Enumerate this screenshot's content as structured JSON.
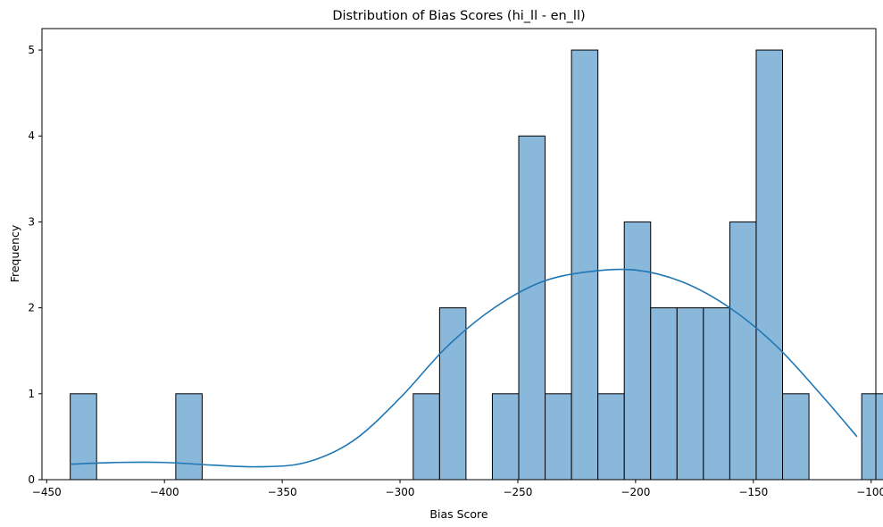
{
  "chart_data": {
    "type": "bar",
    "subtype": "histogram",
    "title": "Distribution of Bias Scores (hi_ll - en_ll)",
    "xlabel": "Bias Score",
    "ylabel": "Frequency",
    "xlim": [
      -452,
      -98
    ],
    "ylim": [
      0,
      5.25
    ],
    "xticks": [
      -450,
      -400,
      -350,
      -300,
      -250,
      -200,
      -150,
      -100
    ],
    "yticks": [
      0,
      1,
      2,
      3,
      4,
      5
    ],
    "bin_start": -440.0,
    "bin_width": 11.2,
    "counts": [
      1,
      0,
      0,
      0,
      1,
      0,
      0,
      0,
      0,
      0,
      0,
      0,
      0,
      1,
      2,
      0,
      1,
      4,
      1,
      5,
      1,
      3,
      2,
      2,
      2,
      3,
      5,
      1,
      0,
      0,
      1
    ],
    "kde_curve": {
      "x": [
        -440,
        -420,
        -400,
        -380,
        -360,
        -340,
        -320,
        -300,
        -280,
        -260,
        -240,
        -220,
        -200,
        -180,
        -160,
        -140,
        -120,
        -106
      ],
      "y": [
        0.18,
        0.2,
        0.2,
        0.17,
        0.15,
        0.2,
        0.45,
        0.95,
        1.55,
        2.0,
        2.3,
        2.42,
        2.44,
        2.3,
        2.0,
        1.55,
        0.95,
        0.5
      ]
    },
    "grid": false,
    "colors": {
      "bar_fill": "#8ab8da",
      "bar_edge": "#000000",
      "kde_line": "#1f77b4"
    }
  }
}
